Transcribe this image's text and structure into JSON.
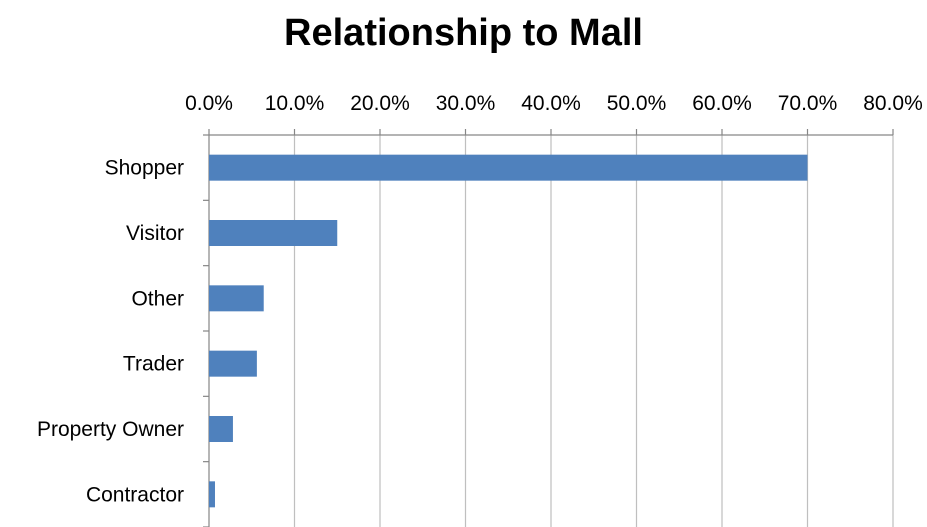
{
  "chart_data": {
    "type": "bar",
    "orientation": "horizontal",
    "title": "Relationship to Mall",
    "xlabel": "",
    "ylabel": "",
    "categories": [
      "Shopper",
      "Visitor",
      "Other",
      "Trader",
      "Property Owner",
      "Contractor"
    ],
    "values": [
      70.0,
      15.0,
      6.4,
      5.6,
      2.8,
      0.7
    ],
    "value_unit": "percent",
    "xlim": [
      0,
      80
    ],
    "x_ticks": [
      0,
      10,
      20,
      30,
      40,
      50,
      60,
      70,
      80
    ],
    "x_tick_labels": [
      "0.0%",
      "10.0%",
      "20.0%",
      "30.0%",
      "40.0%",
      "50.0%",
      "60.0%",
      "70.0%",
      "80.0%"
    ],
    "x_axis_position": "top",
    "grid": true,
    "legend": "none",
    "colors": {
      "bar": "#4F81BD",
      "grid": "#BFBFBF",
      "axis": "#868686",
      "text": "#000000"
    }
  }
}
